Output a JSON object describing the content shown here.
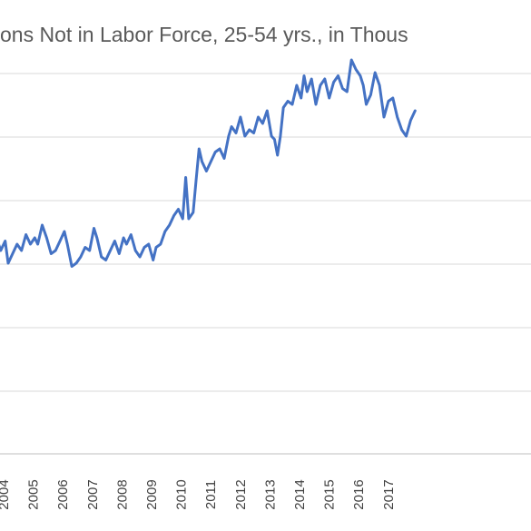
{
  "chart_data": {
    "type": "line",
    "title": "ons Not in Labor Force, 25-54 yrs.,  in Thous",
    "xlabel": "",
    "ylabel": "",
    "x_tick_labels": [
      "2004",
      "2005",
      "2006",
      "2007",
      "2008",
      "2009",
      "2010",
      "2011",
      "2012",
      "2013",
      "2014",
      "2015",
      "2016",
      "2017"
    ],
    "grid": true,
    "legend": "none",
    "series": [
      {
        "color": "#4472c4",
        "points": [
          [
            2003.6,
            3.4
          ],
          [
            2003.75,
            3.2
          ],
          [
            2003.9,
            3.35
          ],
          [
            2004.0,
            3.0
          ],
          [
            2004.15,
            3.15
          ],
          [
            2004.3,
            3.3
          ],
          [
            2004.45,
            3.2
          ],
          [
            2004.6,
            3.45
          ],
          [
            2004.75,
            3.3
          ],
          [
            2004.9,
            3.4
          ],
          [
            2005.0,
            3.3
          ],
          [
            2005.15,
            3.6
          ],
          [
            2005.3,
            3.4
          ],
          [
            2005.45,
            3.15
          ],
          [
            2005.6,
            3.2
          ],
          [
            2005.75,
            3.35
          ],
          [
            2005.9,
            3.5
          ],
          [
            2006.0,
            3.3
          ],
          [
            2006.15,
            2.95
          ],
          [
            2006.3,
            3.0
          ],
          [
            2006.45,
            3.1
          ],
          [
            2006.6,
            3.25
          ],
          [
            2006.75,
            3.2
          ],
          [
            2006.9,
            3.55
          ],
          [
            2007.0,
            3.4
          ],
          [
            2007.15,
            3.1
          ],
          [
            2007.3,
            3.05
          ],
          [
            2007.45,
            3.2
          ],
          [
            2007.6,
            3.35
          ],
          [
            2007.75,
            3.15
          ],
          [
            2007.9,
            3.4
          ],
          [
            2008.0,
            3.3
          ],
          [
            2008.15,
            3.45
          ],
          [
            2008.3,
            3.2
          ],
          [
            2008.45,
            3.1
          ],
          [
            2008.6,
            3.25
          ],
          [
            2008.75,
            3.3
          ],
          [
            2008.9,
            3.05
          ],
          [
            2009.0,
            3.25
          ],
          [
            2009.15,
            3.3
          ],
          [
            2009.3,
            3.5
          ],
          [
            2009.45,
            3.6
          ],
          [
            2009.6,
            3.75
          ],
          [
            2009.75,
            3.85
          ],
          [
            2009.9,
            3.7
          ],
          [
            2010.0,
            4.35
          ],
          [
            2010.1,
            3.7
          ],
          [
            2010.25,
            3.8
          ],
          [
            2010.35,
            4.3
          ],
          [
            2010.45,
            4.8
          ],
          [
            2010.55,
            4.6
          ],
          [
            2010.7,
            4.45
          ],
          [
            2010.85,
            4.6
          ],
          [
            2011.0,
            4.75
          ],
          [
            2011.15,
            4.8
          ],
          [
            2011.3,
            4.65
          ],
          [
            2011.45,
            5.0
          ],
          [
            2011.55,
            5.15
          ],
          [
            2011.7,
            5.05
          ],
          [
            2011.85,
            5.3
          ],
          [
            2012.0,
            5.0
          ],
          [
            2012.15,
            5.1
          ],
          [
            2012.3,
            5.05
          ],
          [
            2012.45,
            5.3
          ],
          [
            2012.6,
            5.2
          ],
          [
            2012.75,
            5.4
          ],
          [
            2012.9,
            5.0
          ],
          [
            2013.0,
            4.95
          ],
          [
            2013.1,
            4.7
          ],
          [
            2013.2,
            5.0
          ],
          [
            2013.3,
            5.45
          ],
          [
            2013.45,
            5.55
          ],
          [
            2013.6,
            5.5
          ],
          [
            2013.75,
            5.8
          ],
          [
            2013.9,
            5.6
          ],
          [
            2014.0,
            5.95
          ],
          [
            2014.1,
            5.7
          ],
          [
            2014.25,
            5.9
          ],
          [
            2014.4,
            5.5
          ],
          [
            2014.55,
            5.8
          ],
          [
            2014.7,
            5.9
          ],
          [
            2014.85,
            5.6
          ],
          [
            2015.0,
            5.85
          ],
          [
            2015.15,
            5.95
          ],
          [
            2015.3,
            5.75
          ],
          [
            2015.45,
            5.7
          ],
          [
            2015.6,
            6.2
          ],
          [
            2015.75,
            6.05
          ],
          [
            2015.9,
            5.95
          ],
          [
            2016.0,
            5.8
          ],
          [
            2016.1,
            5.5
          ],
          [
            2016.25,
            5.65
          ],
          [
            2016.4,
            6.0
          ],
          [
            2016.55,
            5.8
          ],
          [
            2016.7,
            5.3
          ],
          [
            2016.85,
            5.55
          ],
          [
            2017.0,
            5.6
          ],
          [
            2017.15,
            5.3
          ],
          [
            2017.3,
            5.1
          ],
          [
            2017.45,
            5.0
          ],
          [
            2017.6,
            5.25
          ],
          [
            2017.75,
            5.4
          ]
        ]
      }
    ]
  }
}
